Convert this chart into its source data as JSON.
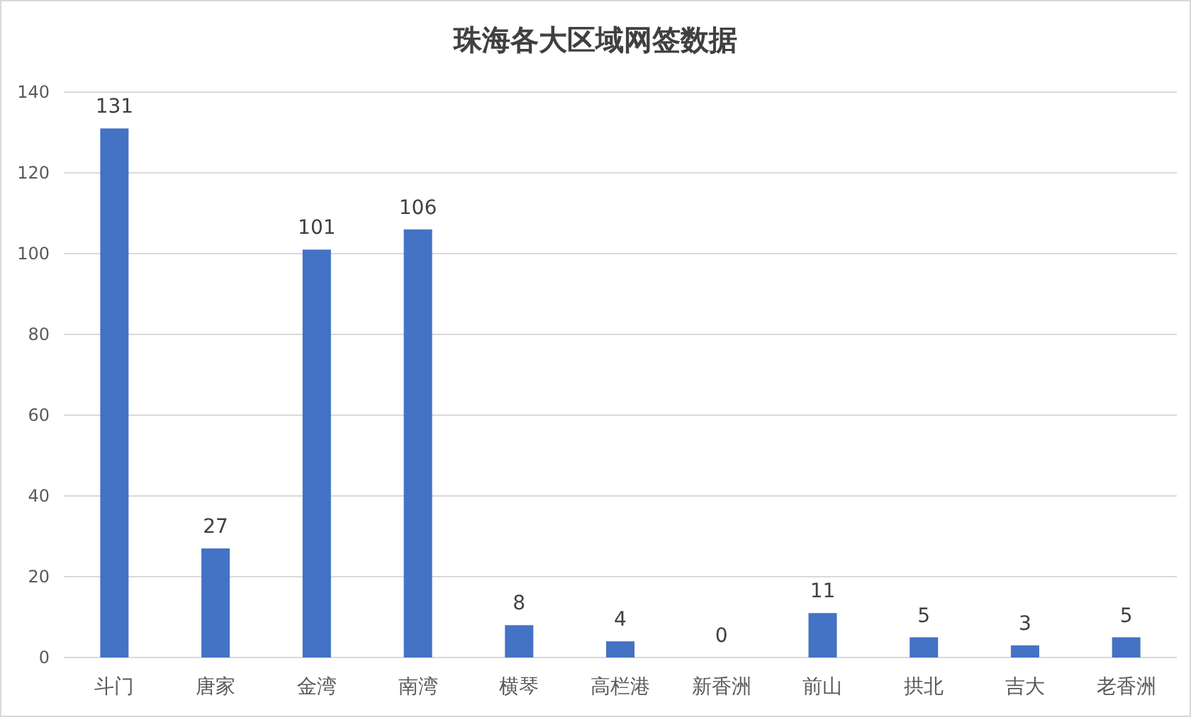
{
  "chart_data": {
    "type": "bar",
    "title": "珠海各大区域网签数据",
    "categories": [
      "斗门",
      "唐家",
      "金湾",
      "南湾",
      "横琴",
      "高栏港",
      "新香洲",
      "前山",
      "拱北",
      "吉大",
      "老香洲"
    ],
    "values": [
      131,
      27,
      101,
      106,
      8,
      4,
      0,
      11,
      5,
      3,
      5
    ],
    "color": "#4472c4",
    "ylim": [
      0,
      140
    ],
    "yticks": [
      0,
      20,
      40,
      60,
      80,
      100,
      120,
      140
    ],
    "grid": "y",
    "data_labels": true
  }
}
